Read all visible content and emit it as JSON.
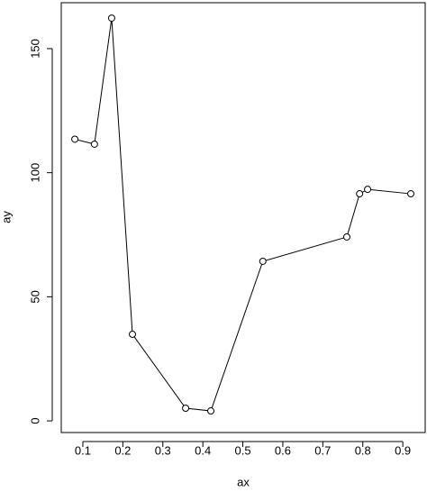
{
  "chart_data": {
    "type": "line",
    "x_label": "ax",
    "y_label": "ay",
    "x": [
      0.08,
      0.129,
      0.172,
      0.224,
      0.357,
      0.42,
      0.55,
      0.76,
      0.792,
      0.812,
      0.92
    ],
    "values": [
      113.5,
      111.5,
      162.3,
      34.9,
      5.1,
      4.0,
      64.3,
      74.1,
      91.5,
      93.3,
      91.5
    ],
    "xlim": [
      0.046,
      0.956
    ],
    "ylim": [
      -4.7,
      168.5
    ],
    "xticks": [
      0.1,
      0.2,
      0.3,
      0.4,
      0.5,
      0.6,
      0.7,
      0.8,
      0.9
    ],
    "yticks": [
      0,
      50,
      100,
      150
    ],
    "color": "#000000"
  }
}
